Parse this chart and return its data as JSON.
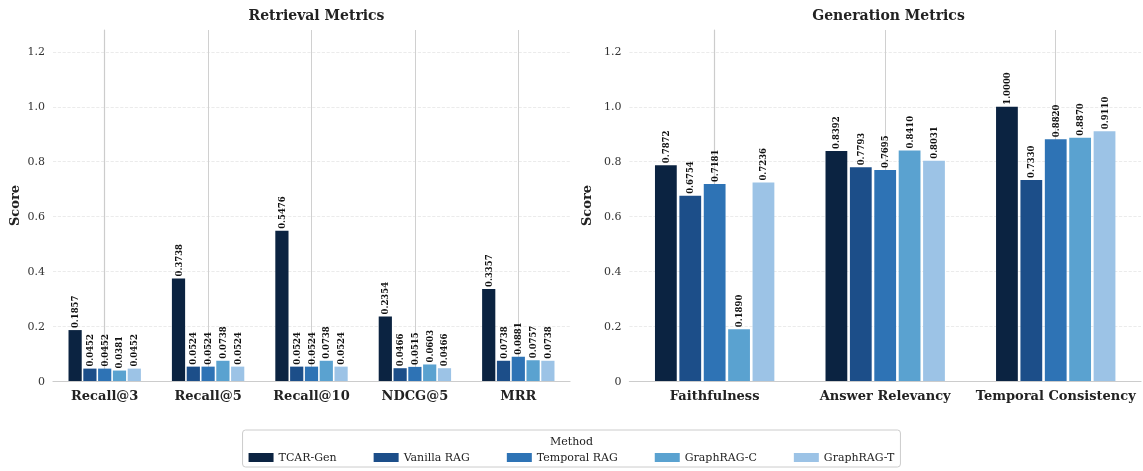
{
  "chart_data": [
    {
      "type": "bar",
      "title": "Retrieval Metrics",
      "ylabel": "Score",
      "legend_title": "Method",
      "legend": "bottom",
      "categories": [
        "Recall@3",
        "Recall@5",
        "Recall@10",
        "NDCG@5",
        "MRR"
      ],
      "series": [
        {
          "name": "TCAR-Gen",
          "color": "#0b2341",
          "values": [
            0.1857,
            0.3738,
            0.5476,
            0.2354,
            0.3357
          ]
        },
        {
          "name": "Vanilla RAG",
          "color": "#1c4e89",
          "values": [
            0.0452,
            0.0524,
            0.0524,
            0.0466,
            0.0738
          ]
        },
        {
          "name": "Temporal RAG",
          "color": "#2e73b5",
          "values": [
            0.0452,
            0.0524,
            0.0524,
            0.0515,
            0.0881
          ]
        },
        {
          "name": "GraphRAG-C",
          "color": "#5aa2d0",
          "values": [
            0.0381,
            0.0738,
            0.0738,
            0.0603,
            0.0757
          ]
        },
        {
          "name": "GraphRAG-T",
          "color": "#9cc3e6",
          "values": [
            0.0452,
            0.0524,
            0.0524,
            0.0466,
            0.0738
          ]
        }
      ],
      "ylim": [
        0,
        1.28
      ],
      "yticks": [
        0,
        {
          "value": 0.2,
          "label": "0.2"
        },
        {
          "value": 0.4,
          "label": "0.4"
        },
        {
          "value": 0.6,
          "label": "0.6"
        },
        {
          "value": 0.8,
          "label": "0.8"
        },
        {
          "value": 1.0,
          "label": "1.0"
        },
        {
          "value": 1.2,
          "label": "1.2"
        }
      ],
      "grid": true,
      "data_labels": true
    },
    {
      "type": "bar",
      "title": "Generation Metrics",
      "ylabel": "Score",
      "categories": [
        "Faithfulness",
        "Answer Relevancy",
        "Temporal Consistency"
      ],
      "series": [
        {
          "color": "#0b2341",
          "values": [
            0.7872,
            0.8392,
            1.0
          ],
          "value_labels": [
            "0.7872",
            "0.8392",
            "1.0000"
          ]
        },
        {
          "color": "#1c4e89",
          "values": [
            0.6754,
            0.7793,
            0.733
          ],
          "value_labels": [
            "0.6754",
            "0.7793",
            "0.7330"
          ]
        },
        {
          "color": "#2e73b5",
          "values": [
            0.7181,
            0.7695,
            0.882
          ],
          "value_labels": [
            "0.7181",
            "0.7695",
            "0.8820"
          ]
        },
        {
          "color": "#5aa2d0",
          "values": [
            0.189,
            0.841,
            0.887
          ],
          "value_labels": [
            "0.1890",
            "0.8410",
            "0.8870"
          ]
        },
        {
          "color": "#9cc3e6",
          "values": [
            0.7236,
            0.8031,
            0.911
          ],
          "value_labels": [
            "0.7236",
            "0.8031",
            "0.9110"
          ]
        }
      ],
      "ylim": [
        0,
        1.28
      ],
      "yticks": [
        0,
        {
          "value": 0.2,
          "label": "0.2"
        },
        {
          "value": 0.4,
          "label": "0.4"
        },
        {
          "value": 0.6,
          "label": "0.6"
        },
        {
          "value": 0.8,
          "label": "0.8"
        },
        {
          "value": 1.0,
          "label": "1.0"
        },
        {
          "value": 1.2,
          "label": "1.2"
        }
      ],
      "grid": true
    }
  ]
}
